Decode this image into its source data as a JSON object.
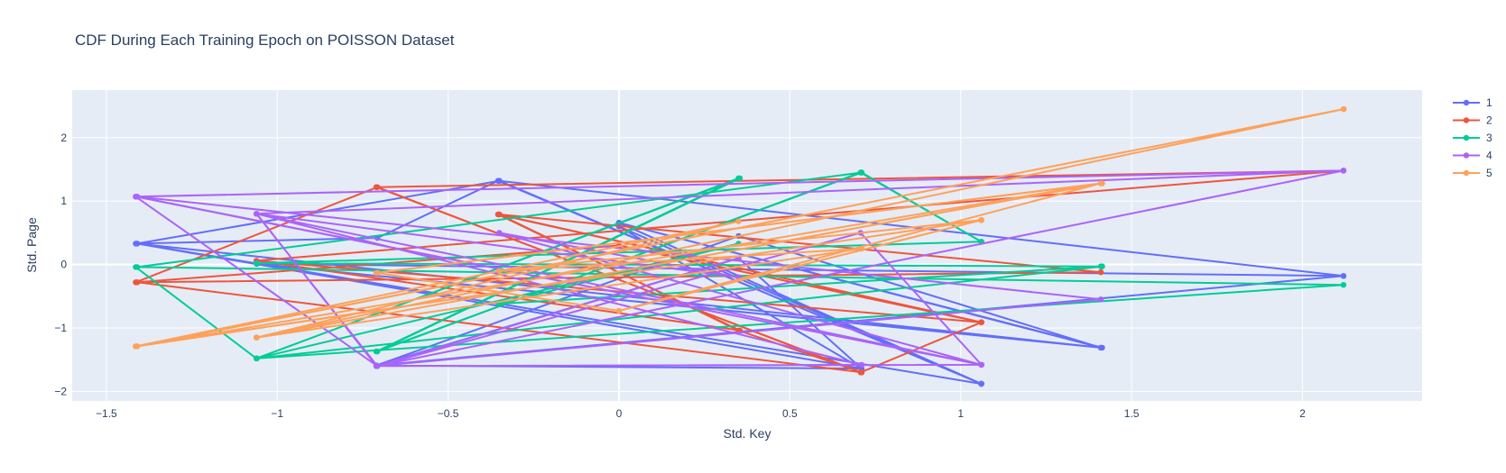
{
  "chart_data": {
    "type": "line",
    "title": "CDF During Each Training Epoch on POISSON Dataset",
    "xlabel": "Std. Key",
    "ylabel": "Std. Page",
    "xlim": [
      -1.6,
      2.35
    ],
    "ylim": [
      -2.15,
      2.75
    ],
    "x_ticks": [
      -1.5,
      -1,
      -0.5,
      0,
      0.5,
      1,
      1.5,
      2
    ],
    "x_tick_labels": [
      "−1.5",
      "−1",
      "−0.5",
      "0",
      "0.5",
      "1",
      "1.5",
      "2"
    ],
    "y_ticks": [
      -2,
      -1,
      0,
      1,
      2
    ],
    "y_tick_labels": [
      "−2",
      "−1",
      "0",
      "1",
      "2"
    ],
    "grid": true,
    "legend_position": "top-right",
    "series": [
      {
        "name": "1",
        "color": "#636efa",
        "points": [
          [
            -1.414,
            0.33
          ],
          [
            -0.707,
            0.42
          ],
          [
            -0.354,
            1.32
          ],
          [
            1.061,
            -1.88
          ],
          [
            0.0,
            0.66
          ],
          [
            1.414,
            -1.31
          ],
          [
            -1.06,
            0.01
          ],
          [
            2.12,
            -0.18
          ],
          [
            -0.71,
            -1.59
          ],
          [
            0.35,
            0.1
          ],
          [
            0.71,
            -1.64
          ],
          [
            -1.41,
            0.33
          ],
          [
            -0.35,
            1.32
          ],
          [
            1.06,
            -1.88
          ],
          [
            0.0,
            0.66
          ],
          [
            1.41,
            -1.31
          ],
          [
            -1.06,
            0.01
          ],
          [
            2.12,
            -0.18
          ],
          [
            -0.35,
            1.32
          ],
          [
            1.06,
            -1.88
          ],
          [
            0.0,
            0.6
          ],
          [
            0.71,
            -1.64
          ],
          [
            -0.71,
            -1.59
          ],
          [
            0.35,
            0.45
          ],
          [
            1.41,
            -1.31
          ],
          [
            -1.41,
            0.33
          ],
          [
            1.06,
            -1.88
          ],
          [
            0.0,
            0.66
          ]
        ]
      },
      {
        "name": "2",
        "color": "#ef553b",
        "points": [
          [
            -1.414,
            -0.28
          ],
          [
            -0.707,
            1.22
          ],
          [
            0.707,
            -1.7
          ],
          [
            1.061,
            -0.91
          ],
          [
            -0.354,
            0.79
          ],
          [
            0.354,
            -1.04
          ],
          [
            -1.061,
            0.06
          ],
          [
            2.12,
            1.48
          ],
          [
            -0.71,
            1.22
          ],
          [
            0.71,
            -1.7
          ],
          [
            -1.41,
            -0.28
          ],
          [
            1.41,
            -0.12
          ],
          [
            -0.35,
            0.79
          ],
          [
            1.06,
            -0.91
          ],
          [
            -1.06,
            0.06
          ],
          [
            2.12,
            1.48
          ],
          [
            -0.71,
            1.22
          ],
          [
            0.71,
            -1.7
          ],
          [
            0.35,
            -1.04
          ],
          [
            -0.35,
            0.79
          ],
          [
            1.41,
            -0.12
          ],
          [
            -1.41,
            -0.28
          ],
          [
            0.0,
            0.3
          ],
          [
            1.06,
            -0.91
          ]
        ]
      },
      {
        "name": "3",
        "color": "#00cc96",
        "points": [
          [
            -1.414,
            -0.04
          ],
          [
            -1.061,
            -1.48
          ],
          [
            0.354,
            1.36
          ],
          [
            -0.707,
            -1.37
          ],
          [
            0.707,
            1.45
          ],
          [
            1.061,
            0.36
          ],
          [
            -1.061,
            0.02
          ],
          [
            1.414,
            -0.03
          ],
          [
            -1.06,
            -1.48
          ],
          [
            0.35,
            1.36
          ],
          [
            -0.71,
            -1.37
          ],
          [
            0.71,
            1.45
          ],
          [
            -1.41,
            -0.04
          ],
          [
            2.12,
            -0.32
          ],
          [
            -1.06,
            -1.48
          ],
          [
            0.35,
            1.36
          ],
          [
            -0.71,
            -1.37
          ],
          [
            0.71,
            1.45
          ],
          [
            1.06,
            0.36
          ],
          [
            -1.06,
            0.02
          ],
          [
            1.41,
            -0.03
          ],
          [
            -0.35,
            -0.62
          ],
          [
            0.35,
            0.33
          ],
          [
            -1.06,
            -1.48
          ]
        ]
      },
      {
        "name": "4",
        "color": "#ab63fa",
        "points": [
          [
            -1.414,
            1.07
          ],
          [
            -0.707,
            -1.6
          ],
          [
            1.061,
            -1.58
          ],
          [
            -1.061,
            0.8
          ],
          [
            -0.707,
            -1.6
          ],
          [
            0.707,
            0.5
          ],
          [
            1.061,
            -1.58
          ],
          [
            -1.414,
            1.07
          ],
          [
            2.12,
            1.48
          ],
          [
            -1.06,
            0.8
          ],
          [
            -0.71,
            -1.6
          ],
          [
            1.41,
            -0.55
          ],
          [
            -1.41,
            1.07
          ],
          [
            1.06,
            -1.58
          ],
          [
            -0.71,
            -1.6
          ],
          [
            0.71,
            -1.58
          ],
          [
            -1.06,
            0.8
          ],
          [
            0.35,
            -0.2
          ],
          [
            -0.35,
            0.5
          ],
          [
            1.06,
            -1.58
          ],
          [
            -1.41,
            1.07
          ],
          [
            2.12,
            1.48
          ],
          [
            -0.71,
            -1.6
          ],
          [
            0.35,
            0.1
          ]
        ]
      },
      {
        "name": "5",
        "color": "#ffa15a",
        "points": [
          [
            -1.414,
            -1.29
          ],
          [
            2.121,
            2.45
          ],
          [
            -1.061,
            -1.15
          ],
          [
            1.414,
            1.28
          ],
          [
            -0.707,
            -0.13
          ],
          [
            0.0,
            -0.73
          ],
          [
            1.061,
            0.7
          ],
          [
            -1.414,
            -1.29
          ],
          [
            0.35,
            0.68
          ],
          [
            -1.06,
            -1.15
          ],
          [
            1.41,
            1.28
          ],
          [
            -0.71,
            -0.13
          ],
          [
            0.0,
            -0.73
          ],
          [
            1.06,
            0.7
          ],
          [
            -1.41,
            -1.29
          ],
          [
            2.12,
            2.45
          ],
          [
            -1.06,
            -1.15
          ],
          [
            0.71,
            0.25
          ],
          [
            -0.35,
            -0.1
          ],
          [
            1.06,
            0.7
          ],
          [
            -1.41,
            -1.29
          ],
          [
            1.41,
            1.28
          ],
          [
            0.0,
            -0.73
          ],
          [
            1.06,
            0.7
          ]
        ]
      }
    ]
  }
}
